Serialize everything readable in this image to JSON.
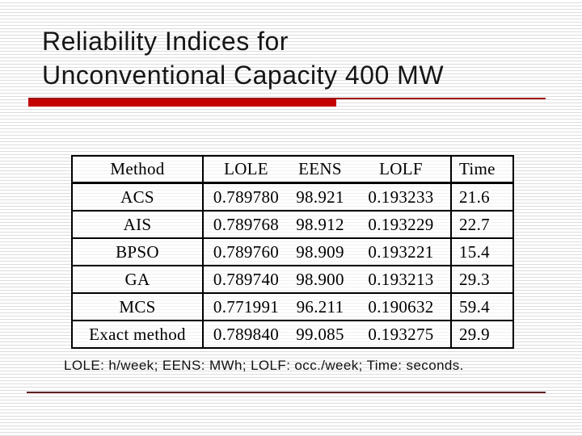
{
  "slide": {
    "title_line1": "Reliability Indices for",
    "title_line2": "Unconventional Capacity 400 MW",
    "footnote": "LOLE: h/week; EENS: MWh; LOLF: occ./week; Time: seconds.",
    "colors": {
      "accent_bar": "#c40000",
      "accent_thin_line": "#9e1414",
      "bottom_divider": "#5c2222",
      "background_stripe": "#dddddd",
      "text": "#161616",
      "table_border": "#000000"
    }
  },
  "table": {
    "headers": {
      "method": "Method",
      "lole": "LOLE",
      "eens": "EENS",
      "lolf": "LOLF",
      "time": "Time"
    },
    "rows": [
      {
        "method": "ACS",
        "lole": "0.789780",
        "eens": "98.921",
        "lolf": "0.193233",
        "time": "21.6"
      },
      {
        "method": "AIS",
        "lole": "0.789768",
        "eens": "98.912",
        "lolf": "0.193229",
        "time": "22.7"
      },
      {
        "method": "BPSO",
        "lole": "0.789760",
        "eens": "98.909",
        "lolf": "0.193221",
        "time": "15.4"
      },
      {
        "method": "GA",
        "lole": "0.789740",
        "eens": "98.900",
        "lolf": "0.193213",
        "time": "29.3"
      },
      {
        "method": "MCS",
        "lole": "0.771991",
        "eens": "96.211",
        "lolf": "0.190632",
        "time": "59.4"
      },
      {
        "method": "Exact method",
        "lole": "0.789840",
        "eens": "99.085",
        "lolf": "0.193275",
        "time": "29.9"
      }
    ]
  }
}
